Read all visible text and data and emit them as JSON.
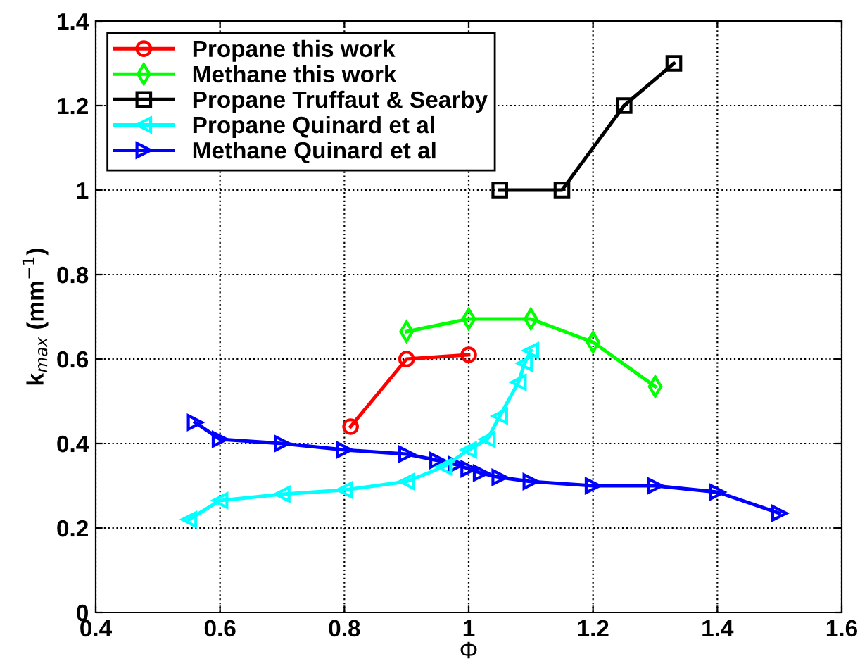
{
  "chart_data": {
    "type": "line",
    "xlabel": "Φ",
    "ylabel": "k$_{max}$ (mm$^{−1}$)",
    "xlim": [
      0.4,
      1.6
    ],
    "ylim": [
      0,
      1.4
    ],
    "xticks": [
      0.4,
      0.6,
      0.8,
      1,
      1.2,
      1.4,
      1.6
    ],
    "yticks": [
      0,
      0.2,
      0.4,
      0.6,
      0.8,
      1,
      1.2,
      1.4
    ],
    "grid": true,
    "legend": "top left",
    "line_style": "solid",
    "series": [
      {
        "name": "Propane this work",
        "color": "#ff0000",
        "marker": "circle",
        "x": [
          0.81,
          0.9,
          1.0
        ],
        "values": [
          0.44,
          0.6,
          0.61
        ]
      },
      {
        "name": "Methane this work",
        "color": "#00ff00",
        "marker": "diamond",
        "x": [
          0.9,
          1.0,
          1.1,
          1.2,
          1.3
        ],
        "values": [
          0.665,
          0.695,
          0.695,
          0.64,
          0.535
        ]
      },
      {
        "name": "Propane Truffaut & Searby",
        "color": "#000000",
        "marker": "square",
        "x": [
          1.05,
          1.15,
          1.25,
          1.33
        ],
        "values": [
          1.0,
          1.0,
          1.2,
          1.3
        ]
      },
      {
        "name": "Propane Quinard et al",
        "color": "#00ffff",
        "marker": "triangle_left",
        "x": [
          0.55,
          0.6,
          0.7,
          0.8,
          0.9,
          0.96,
          1.0,
          1.03,
          1.05,
          1.08,
          1.09,
          1.1
        ],
        "values": [
          0.22,
          0.265,
          0.28,
          0.29,
          0.31,
          0.345,
          0.385,
          0.41,
          0.465,
          0.545,
          0.59,
          0.62
        ]
      },
      {
        "name": "Methane Quinard et al",
        "color": "#0000ff",
        "marker": "triangle_right",
        "x": [
          0.56,
          0.6,
          0.7,
          0.8,
          0.9,
          0.95,
          0.98,
          1.0,
          1.02,
          1.05,
          1.1,
          1.2,
          1.3,
          1.4,
          1.5
        ],
        "values": [
          0.45,
          0.41,
          0.4,
          0.385,
          0.375,
          0.36,
          0.35,
          0.34,
          0.33,
          0.32,
          0.31,
          0.3,
          0.3,
          0.285,
          0.235
        ]
      }
    ]
  }
}
